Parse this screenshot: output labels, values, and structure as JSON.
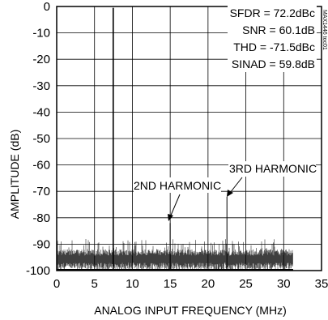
{
  "chart_data": {
    "type": "line",
    "title": "",
    "xlabel": "ANALOG INPUT FREQUENCY (MHz)",
    "ylabel": "AMPLITUDE (dB)",
    "xlim": [
      0,
      35
    ],
    "ylim": [
      -100,
      0
    ],
    "xticks": [
      0,
      5,
      10,
      15,
      20,
      25,
      30,
      35
    ],
    "yticks": [
      0,
      -10,
      -20,
      -30,
      -40,
      -50,
      -60,
      -70,
      -80,
      -90,
      -100
    ],
    "xtick_labels": [
      "0",
      "5",
      "10",
      "15",
      "20",
      "25",
      "30",
      "35"
    ],
    "ytick_labels": [
      "0",
      "-10",
      "-20",
      "-30",
      "-40",
      "-50",
      "-60",
      "-70",
      "-80",
      "-90",
      "-100"
    ],
    "grid": true,
    "stats": [
      "SFDR = 72.2dBc",
      "SNR = 60.1dB",
      "THD = -71.5dBc",
      "SINAD = 59.8dB"
    ],
    "part_number": "MAX1446 toc01",
    "annotations": [
      {
        "text": "2ND HARMONIC",
        "x": 15.0,
        "y": -82
      },
      {
        "text": "3RD HARMONIC",
        "x": 22.5,
        "y": -72
      }
    ],
    "series": [
      {
        "x": [
          7.47,
          15.0,
          22.5
        ],
        "y": [
          -0.5,
          -82,
          -72
        ],
        "noise_floor_min": -100,
        "noise_floor_max": -88,
        "noise_floor_typical": -92,
        "x_end": 31.25
      }
    ]
  }
}
